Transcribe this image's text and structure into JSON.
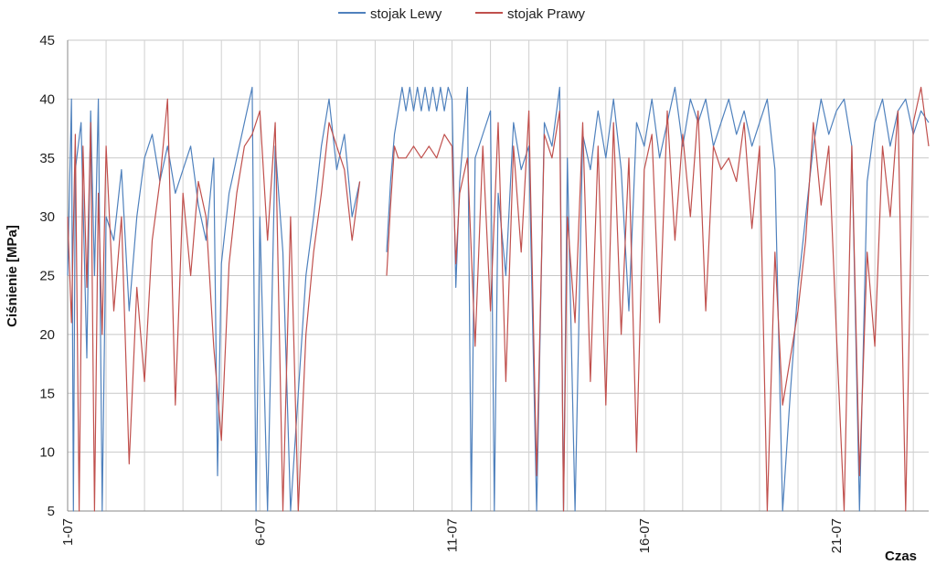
{
  "chart_data": {
    "type": "line",
    "title": "",
    "xlabel": "Czas",
    "ylabel": "Ciśnienie [MPa]",
    "ylim": [
      5,
      45
    ],
    "yticks": [
      5,
      10,
      15,
      20,
      25,
      30,
      35,
      40,
      45
    ],
    "x_range_days": [
      1,
      23.4
    ],
    "xtick_labels": [
      {
        "day": 1,
        "label": "1-07"
      },
      {
        "day": 6,
        "label": "6-07"
      },
      {
        "day": 11,
        "label": "11-07"
      },
      {
        "day": 16,
        "label": "16-07"
      },
      {
        "day": 21,
        "label": "21-07"
      }
    ],
    "grid": "vertical and horizontal",
    "legend_position": "top-center",
    "series": [
      {
        "name": "stojak Lewy",
        "color": "#4f81bd",
        "points": [
          [
            1.0,
            25
          ],
          [
            1.1,
            40
          ],
          [
            1.15,
            5
          ],
          [
            1.2,
            34
          ],
          [
            1.35,
            38
          ],
          [
            1.5,
            18
          ],
          [
            1.6,
            39
          ],
          [
            1.7,
            25
          ],
          [
            1.8,
            40
          ],
          [
            1.9,
            5
          ],
          [
            2.0,
            30
          ],
          [
            2.2,
            28
          ],
          [
            2.4,
            34
          ],
          [
            2.6,
            22
          ],
          [
            2.8,
            30
          ],
          [
            3.0,
            35
          ],
          [
            3.2,
            37
          ],
          [
            3.4,
            33
          ],
          [
            3.6,
            36
          ],
          [
            3.8,
            32
          ],
          [
            4.0,
            34
          ],
          [
            4.2,
            36
          ],
          [
            4.4,
            31
          ],
          [
            4.6,
            28
          ],
          [
            4.8,
            35
          ],
          [
            4.9,
            8
          ],
          [
            5.0,
            26
          ],
          [
            5.2,
            32
          ],
          [
            5.4,
            35
          ],
          [
            5.6,
            38
          ],
          [
            5.8,
            41
          ],
          [
            5.9,
            5
          ],
          [
            6.0,
            30
          ],
          [
            6.2,
            5
          ],
          [
            6.4,
            36
          ],
          [
            6.6,
            27
          ],
          [
            6.8,
            5
          ],
          [
            7.0,
            15
          ],
          [
            7.2,
            25
          ],
          [
            7.4,
            30
          ],
          [
            7.6,
            36
          ],
          [
            7.8,
            40
          ],
          [
            8.0,
            34
          ],
          [
            8.2,
            37
          ],
          [
            8.4,
            30
          ],
          [
            8.6,
            33
          ],
          [
            9.3,
            27
          ],
          [
            9.4,
            33
          ],
          [
            9.5,
            37
          ],
          [
            9.6,
            39
          ],
          [
            9.7,
            41
          ],
          [
            9.8,
            39
          ],
          [
            9.9,
            41
          ],
          [
            10.0,
            39
          ],
          [
            10.1,
            41
          ],
          [
            10.2,
            39
          ],
          [
            10.3,
            41
          ],
          [
            10.4,
            39
          ],
          [
            10.5,
            41
          ],
          [
            10.6,
            39
          ],
          [
            10.7,
            41
          ],
          [
            10.8,
            39
          ],
          [
            10.9,
            41
          ],
          [
            11.0,
            40
          ],
          [
            11.1,
            24
          ],
          [
            11.2,
            33
          ],
          [
            11.4,
            41
          ],
          [
            11.5,
            5
          ],
          [
            11.6,
            35
          ],
          [
            11.8,
            37
          ],
          [
            12.0,
            39
          ],
          [
            12.1,
            5
          ],
          [
            12.2,
            32
          ],
          [
            12.4,
            25
          ],
          [
            12.6,
            38
          ],
          [
            12.8,
            34
          ],
          [
            13.0,
            36
          ],
          [
            13.2,
            5
          ],
          [
            13.4,
            38
          ],
          [
            13.6,
            36
          ],
          [
            13.8,
            41
          ],
          [
            13.9,
            5
          ],
          [
            14.0,
            35
          ],
          [
            14.2,
            5
          ],
          [
            14.4,
            37
          ],
          [
            14.6,
            34
          ],
          [
            14.8,
            39
          ],
          [
            15.0,
            35
          ],
          [
            15.2,
            40
          ],
          [
            15.4,
            34
          ],
          [
            15.6,
            22
          ],
          [
            15.8,
            38
          ],
          [
            16.0,
            36
          ],
          [
            16.2,
            40
          ],
          [
            16.4,
            35
          ],
          [
            16.6,
            38
          ],
          [
            16.8,
            41
          ],
          [
            17.0,
            36
          ],
          [
            17.2,
            40
          ],
          [
            17.4,
            38
          ],
          [
            17.6,
            40
          ],
          [
            17.8,
            36
          ],
          [
            18.0,
            38
          ],
          [
            18.2,
            40
          ],
          [
            18.4,
            37
          ],
          [
            18.6,
            39
          ],
          [
            18.8,
            36
          ],
          [
            19.0,
            38
          ],
          [
            19.2,
            40
          ],
          [
            19.4,
            34
          ],
          [
            19.6,
            5
          ],
          [
            19.8,
            15
          ],
          [
            20.0,
            24
          ],
          [
            20.2,
            30
          ],
          [
            20.4,
            36
          ],
          [
            20.6,
            40
          ],
          [
            20.8,
            37
          ],
          [
            21.0,
            39
          ],
          [
            21.2,
            40
          ],
          [
            21.4,
            36
          ],
          [
            21.6,
            5
          ],
          [
            21.8,
            33
          ],
          [
            22.0,
            38
          ],
          [
            22.2,
            40
          ],
          [
            22.4,
            36
          ],
          [
            22.6,
            39
          ],
          [
            22.8,
            40
          ],
          [
            23.0,
            37
          ],
          [
            23.2,
            39
          ],
          [
            23.4,
            38
          ]
        ]
      },
      {
        "name": "stojak Prawy",
        "color": "#c0504d",
        "points": [
          [
            1.0,
            30
          ],
          [
            1.1,
            21
          ],
          [
            1.2,
            37
          ],
          [
            1.3,
            5
          ],
          [
            1.4,
            36
          ],
          [
            1.5,
            24
          ],
          [
            1.6,
            38
          ],
          [
            1.7,
            5
          ],
          [
            1.8,
            32
          ],
          [
            1.9,
            20
          ],
          [
            2.0,
            36
          ],
          [
            2.2,
            22
          ],
          [
            2.4,
            30
          ],
          [
            2.6,
            9
          ],
          [
            2.8,
            24
          ],
          [
            3.0,
            16
          ],
          [
            3.2,
            28
          ],
          [
            3.4,
            33
          ],
          [
            3.6,
            40
          ],
          [
            3.8,
            14
          ],
          [
            4.0,
            32
          ],
          [
            4.2,
            25
          ],
          [
            4.4,
            33
          ],
          [
            4.6,
            30
          ],
          [
            4.8,
            19
          ],
          [
            5.0,
            11
          ],
          [
            5.2,
            26
          ],
          [
            5.4,
            32
          ],
          [
            5.6,
            36
          ],
          [
            5.8,
            37
          ],
          [
            6.0,
            39
          ],
          [
            6.2,
            28
          ],
          [
            6.4,
            38
          ],
          [
            6.6,
            5
          ],
          [
            6.8,
            30
          ],
          [
            7.0,
            5
          ],
          [
            7.2,
            20
          ],
          [
            7.4,
            27
          ],
          [
            7.6,
            32
          ],
          [
            7.8,
            38
          ],
          [
            8.0,
            36
          ],
          [
            8.2,
            34
          ],
          [
            8.4,
            28
          ],
          [
            8.6,
            33
          ],
          [
            9.3,
            25
          ],
          [
            9.4,
            31
          ],
          [
            9.5,
            36
          ],
          [
            9.6,
            35
          ],
          [
            9.8,
            35
          ],
          [
            10.0,
            36
          ],
          [
            10.2,
            35
          ],
          [
            10.4,
            36
          ],
          [
            10.6,
            35
          ],
          [
            10.8,
            37
          ],
          [
            11.0,
            36
          ],
          [
            11.1,
            26
          ],
          [
            11.2,
            32
          ],
          [
            11.4,
            35
          ],
          [
            11.6,
            19
          ],
          [
            11.8,
            36
          ],
          [
            12.0,
            22
          ],
          [
            12.2,
            38
          ],
          [
            12.4,
            16
          ],
          [
            12.6,
            36
          ],
          [
            12.8,
            27
          ],
          [
            13.0,
            39
          ],
          [
            13.2,
            8
          ],
          [
            13.4,
            37
          ],
          [
            13.6,
            35
          ],
          [
            13.8,
            39
          ],
          [
            13.9,
            5
          ],
          [
            14.0,
            30
          ],
          [
            14.2,
            21
          ],
          [
            14.4,
            38
          ],
          [
            14.6,
            16
          ],
          [
            14.8,
            36
          ],
          [
            15.0,
            14
          ],
          [
            15.2,
            38
          ],
          [
            15.4,
            20
          ],
          [
            15.6,
            35
          ],
          [
            15.8,
            10
          ],
          [
            16.0,
            34
          ],
          [
            16.2,
            37
          ],
          [
            16.4,
            21
          ],
          [
            16.6,
            39
          ],
          [
            16.8,
            28
          ],
          [
            17.0,
            37
          ],
          [
            17.2,
            30
          ],
          [
            17.4,
            39
          ],
          [
            17.6,
            22
          ],
          [
            17.8,
            36
          ],
          [
            18.0,
            34
          ],
          [
            18.2,
            35
          ],
          [
            18.4,
            33
          ],
          [
            18.6,
            38
          ],
          [
            18.8,
            29
          ],
          [
            19.0,
            36
          ],
          [
            19.2,
            5
          ],
          [
            19.4,
            27
          ],
          [
            19.6,
            14
          ],
          [
            19.8,
            18
          ],
          [
            20.0,
            22
          ],
          [
            20.2,
            28
          ],
          [
            20.4,
            38
          ],
          [
            20.6,
            31
          ],
          [
            20.8,
            36
          ],
          [
            21.0,
            20
          ],
          [
            21.2,
            5
          ],
          [
            21.4,
            36
          ],
          [
            21.6,
            8
          ],
          [
            21.8,
            27
          ],
          [
            22.0,
            19
          ],
          [
            22.2,
            36
          ],
          [
            22.4,
            30
          ],
          [
            22.6,
            39
          ],
          [
            22.8,
            5
          ],
          [
            23.0,
            38
          ],
          [
            23.2,
            41
          ],
          [
            23.4,
            36
          ]
        ]
      }
    ]
  }
}
